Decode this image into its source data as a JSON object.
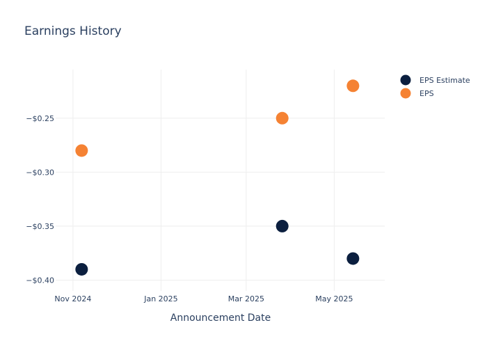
{
  "chart_data": {
    "type": "scatter",
    "title": "Earnings History",
    "xlabel": "Announcement Date",
    "ylabel": "",
    "x_axis_type": "date",
    "xlim": [
      "2024-10-20",
      "2025-06-05"
    ],
    "ylim": [
      -0.41,
      -0.205
    ],
    "x_ticks": [
      {
        "value": "2024-11-01",
        "label": "Nov 2024"
      },
      {
        "value": "2025-01-01",
        "label": "Jan 2025"
      },
      {
        "value": "2025-03-01",
        "label": "Mar 2025"
      },
      {
        "value": "2025-05-01",
        "label": "May 2025"
      }
    ],
    "y_ticks": [
      {
        "value": -0.25,
        "label": "−$0.25"
      },
      {
        "value": -0.3,
        "label": "−$0.30"
      },
      {
        "value": -0.35,
        "label": "−$0.35"
      },
      {
        "value": -0.4,
        "label": "−$0.40"
      }
    ],
    "grid": true,
    "legend_position": "top-right",
    "series": [
      {
        "name": "EPS Estimate",
        "color": "#0b1f3f",
        "points": [
          {
            "x": "2024-11-07",
            "y": -0.39
          },
          {
            "x": "2025-03-26",
            "y": -0.35
          },
          {
            "x": "2025-05-14",
            "y": -0.38
          }
        ]
      },
      {
        "name": "EPS",
        "color": "#f58233",
        "points": [
          {
            "x": "2024-11-07",
            "y": -0.28
          },
          {
            "x": "2025-03-26",
            "y": -0.25
          },
          {
            "x": "2025-05-14",
            "y": -0.22
          }
        ]
      }
    ]
  }
}
